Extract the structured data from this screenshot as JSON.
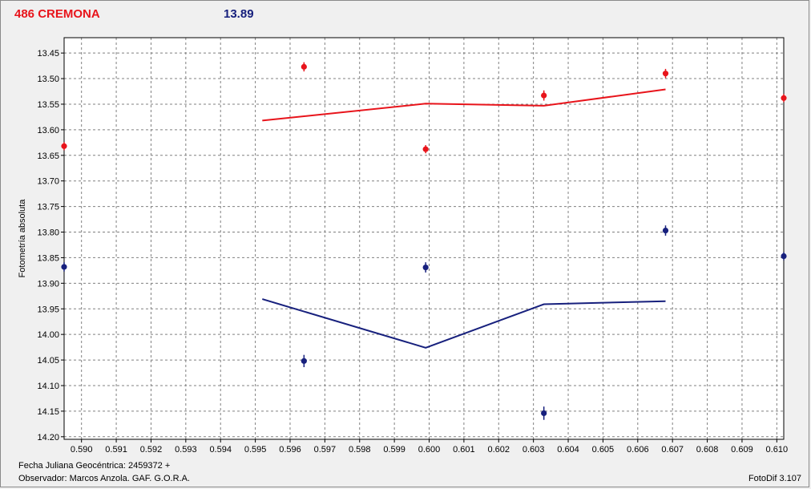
{
  "header": {
    "target": "486 CREMONA",
    "reference_mag": "13.89"
  },
  "footer": {
    "julian_label": "Fecha Juliana Geocéntrica: 2459372 +",
    "observer_label": "Observador:  Marcos Anzola. GAF. G.O.R.A.",
    "software": "FotoDif 3.107"
  },
  "chart_data": {
    "type": "scatter",
    "ylabel": "Fotometría absoluta",
    "xlim": [
      0.5895,
      0.6102
    ],
    "ylim": [
      13.42,
      14.205
    ],
    "y_inverted": true,
    "grid": true,
    "x_ticks": [
      0.59,
      0.591,
      0.592,
      0.593,
      0.594,
      0.595,
      0.596,
      0.597,
      0.598,
      0.599,
      0.6,
      0.601,
      0.602,
      0.603,
      0.604,
      0.605,
      0.606,
      0.607,
      0.608,
      0.609,
      0.61
    ],
    "x_tick_labels": [
      "0.590",
      "0.591",
      "0.592",
      "0.593",
      "0.594",
      "0.595",
      "0.596",
      "0.597",
      "0.598",
      "0.599",
      "0.600",
      "0.601",
      "0.602",
      "0.603",
      "0.604",
      "0.605",
      "0.606",
      "0.607",
      "0.608",
      "0.609",
      "0.610"
    ],
    "y_ticks": [
      13.45,
      13.5,
      13.55,
      13.6,
      13.65,
      13.7,
      13.75,
      13.8,
      13.85,
      13.9,
      13.95,
      14.0,
      14.05,
      14.1,
      14.15,
      14.2
    ],
    "y_tick_labels": [
      "13.45",
      "13.50",
      "13.55",
      "13.60",
      "13.65",
      "13.70",
      "13.75",
      "13.80",
      "13.85",
      "13.90",
      "13.95",
      "14.00",
      "14.05",
      "14.10",
      "14.15",
      "14.20"
    ],
    "series": [
      {
        "color": "#e8141b",
        "points": [
          {
            "x": 0.5895,
            "y": 13.632,
            "err": 0.008
          },
          {
            "x": 0.5964,
            "y": 13.477,
            "err": 0.009
          },
          {
            "x": 0.5999,
            "y": 13.638,
            "err": 0.008
          },
          {
            "x": 0.6033,
            "y": 13.533,
            "err": 0.01
          },
          {
            "x": 0.6068,
            "y": 13.49,
            "err": 0.009
          },
          {
            "x": 0.6102,
            "y": 13.538,
            "err": 0.008
          }
        ],
        "trend": [
          {
            "x": 0.5952,
            "y": 13.582
          },
          {
            "x": 0.5999,
            "y": 13.549
          },
          {
            "x": 0.6033,
            "y": 13.553
          },
          {
            "x": 0.6068,
            "y": 13.521
          }
        ]
      },
      {
        "color": "#17207d",
        "points": [
          {
            "x": 0.5895,
            "y": 13.868,
            "err": 0.009
          },
          {
            "x": 0.5964,
            "y": 14.052,
            "err": 0.012
          },
          {
            "x": 0.5999,
            "y": 13.869,
            "err": 0.01
          },
          {
            "x": 0.6033,
            "y": 14.154,
            "err": 0.013
          },
          {
            "x": 0.6068,
            "y": 13.797,
            "err": 0.01
          },
          {
            "x": 0.6102,
            "y": 13.847,
            "err": 0.008
          }
        ],
        "trend": [
          {
            "x": 0.5952,
            "y": 13.931
          },
          {
            "x": 0.5999,
            "y": 14.026
          },
          {
            "x": 0.6033,
            "y": 13.941
          },
          {
            "x": 0.6068,
            "y": 13.935
          }
        ]
      }
    ]
  }
}
